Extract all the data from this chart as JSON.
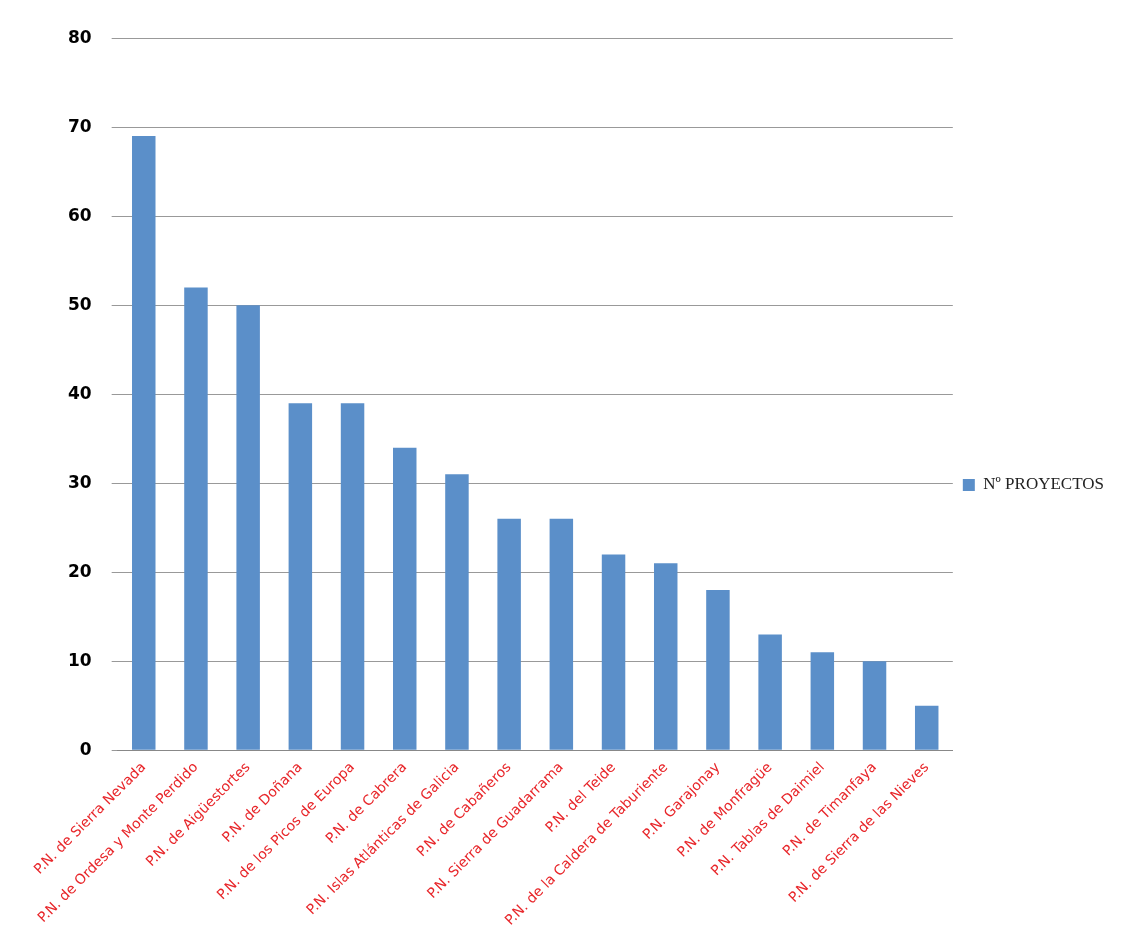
{
  "chart_data": {
    "type": "bar",
    "categories": [
      "P.N. de Sierra Nevada",
      "P.N. de Ordesa y Monte Perdido",
      "P.N. de Aigüestortes",
      "P.N. de Doñana",
      "P.N. de los Picos de Europa",
      "P.N. de Cabrera",
      "P.N. Islas Atlánticas de Galicia",
      "P.N. de Cabañeros",
      "P.N. Sierra de Guadarrama",
      "P.N. del Teide",
      "P.N. de la Caldera de Taburiente",
      "P.N. Garajonay",
      "P.N. de Monfragüe",
      "P.N. Tablas de Daimiel",
      "P.N. de Timanfaya",
      "P.N. de Sierra de las Nieves"
    ],
    "series": [
      {
        "name": "Nº PROYECTOS",
        "color": "#5b8fc9",
        "values": [
          69,
          52,
          50,
          39,
          39,
          34,
          31,
          26,
          26,
          22,
          21,
          18,
          13,
          11,
          10,
          5
        ]
      }
    ],
    "ylim": [
      0,
      80
    ],
    "yticks": [
      0,
      10,
      20,
      30,
      40,
      50,
      60,
      70,
      80
    ],
    "grid": "y",
    "legend": "right"
  }
}
